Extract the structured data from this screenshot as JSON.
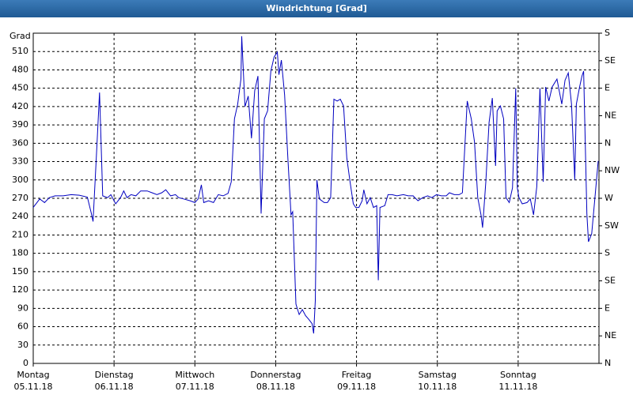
{
  "chart_data": {
    "type": "line",
    "title": "Windrichtung [Grad]",
    "y_label": "Grad",
    "xlim": [
      0,
      7
    ],
    "xticks": [
      {
        "value": 0,
        "label": "Montag",
        "date": "05.11.18"
      },
      {
        "value": 1,
        "label": "Dienstag",
        "date": "06.11.18"
      },
      {
        "value": 2,
        "label": "Mittwoch",
        "date": "07.11.18"
      },
      {
        "value": 3,
        "label": "Donnerstag",
        "date": "08.11.18"
      },
      {
        "value": 4,
        "label": "Freitag",
        "date": "09.11.18"
      },
      {
        "value": 5,
        "label": "Samstag",
        "date": "10.11.18"
      },
      {
        "value": 6,
        "label": "Sonntag",
        "date": "11.11.18"
      }
    ],
    "ylim": [
      0,
      540
    ],
    "yticks": [
      0,
      30,
      60,
      90,
      120,
      150,
      180,
      210,
      240,
      270,
      300,
      330,
      360,
      390,
      420,
      450,
      480,
      510
    ],
    "y2lim": [
      0,
      540
    ],
    "y2ticks": [
      {
        "value": 540,
        "label": "S"
      },
      {
        "value": 495,
        "label": "SE"
      },
      {
        "value": 450,
        "label": "E"
      },
      {
        "value": 405,
        "label": "NE"
      },
      {
        "value": 360,
        "label": "N"
      },
      {
        "value": 315,
        "label": "NW"
      },
      {
        "value": 270,
        "label": "W"
      },
      {
        "value": 225,
        "label": "SW"
      },
      {
        "value": 180,
        "label": "S"
      },
      {
        "value": 135,
        "label": "SE"
      },
      {
        "value": 90,
        "label": "E"
      },
      {
        "value": 45,
        "label": "NE"
      },
      {
        "value": 0,
        "label": "N"
      }
    ],
    "grid": true,
    "series": [
      {
        "color": "#0000c0",
        "x": [
          0,
          0.08,
          0.14,
          0.2,
          0.27,
          0.37,
          0.47,
          0.57,
          0.67,
          0.72,
          0.74,
          0.78,
          0.82,
          0.86,
          0.92,
          0.96,
          1.02,
          1.08,
          1.12,
          1.16,
          1.21,
          1.27,
          1.33,
          1.41,
          1.47,
          1.53,
          1.59,
          1.64,
          1.7,
          1.76,
          1.8,
          1.86,
          1.94,
          2.0,
          2.04,
          2.08,
          2.11,
          2.17,
          2.23,
          2.29,
          2.35,
          2.41,
          2.45,
          2.49,
          2.53,
          2.57,
          2.58,
          2.62,
          2.66,
          2.7,
          2.74,
          2.78,
          2.82,
          2.86,
          2.9,
          2.94,
          2.98,
          3.02,
          3.04,
          3.07,
          3.11,
          3.15,
          3.19,
          3.21,
          3.25,
          3.29,
          3.33,
          3.37,
          3.41,
          3.45,
          3.47,
          3.49,
          3.51,
          3.54,
          3.6,
          3.64,
          3.68,
          3.72,
          3.76,
          3.8,
          3.84,
          3.88,
          3.92,
          3.96,
          3.99,
          4.03,
          4.07,
          4.09,
          4.13,
          4.17,
          4.21,
          4.25,
          4.27,
          4.29,
          4.35,
          4.39,
          4.44,
          4.5,
          4.58,
          4.64,
          4.7,
          4.76,
          4.82,
          4.88,
          4.93,
          4.99,
          5.05,
          5.11,
          5.15,
          5.21,
          5.27,
          5.31,
          5.37,
          5.42,
          5.46,
          5.5,
          5.54,
          5.56,
          5.6,
          5.64,
          5.68,
          5.72,
          5.74,
          5.78,
          5.82,
          5.85,
          5.89,
          5.93,
          5.97,
          5.99,
          6.01,
          6.05,
          6.11,
          6.15,
          6.19,
          6.23,
          6.27,
          6.31,
          6.34,
          6.38,
          6.42,
          6.48,
          6.54,
          6.58,
          6.62,
          6.66,
          6.7,
          6.72,
          6.76,
          6.79,
          6.81,
          6.85,
          6.87,
          6.91,
          6.95,
          6.99
        ],
        "values": [
          255,
          269,
          263,
          271,
          274,
          274,
          276,
          275,
          272,
          245,
          232,
          336,
          443,
          274,
          271,
          276,
          261,
          271,
          282,
          271,
          276,
          274,
          282,
          282,
          279,
          276,
          279,
          284,
          274,
          276,
          271,
          269,
          266,
          263,
          269,
          292,
          263,
          266,
          263,
          276,
          274,
          278,
          297,
          400,
          424,
          465,
          535,
          420,
          437,
          368,
          446,
          470,
          245,
          400,
          413,
          478,
          501,
          509,
          472,
          496,
          439,
          336,
          243,
          248,
          97,
          80,
          88,
          78,
          72,
          65,
          49,
          103,
          300,
          269,
          263,
          263,
          271,
          432,
          429,
          432,
          421,
          336,
          297,
          261,
          255,
          255,
          266,
          284,
          261,
          271,
          255,
          258,
          136,
          255,
          258,
          276,
          276,
          274,
          276,
          274,
          274,
          266,
          271,
          274,
          271,
          276,
          274,
          274,
          279,
          276,
          276,
          279,
          429,
          400,
          362,
          271,
          243,
          222,
          297,
          394,
          434,
          323,
          413,
          421,
          400,
          271,
          263,
          287,
          450,
          287,
          271,
          261,
          263,
          269,
          243,
          289,
          450,
          297,
          452,
          429,
          452,
          465,
          424,
          463,
          475,
          424,
          300,
          424,
          452,
          470,
          478,
          245,
          199,
          212,
          271,
          331
        ]
      }
    ]
  }
}
